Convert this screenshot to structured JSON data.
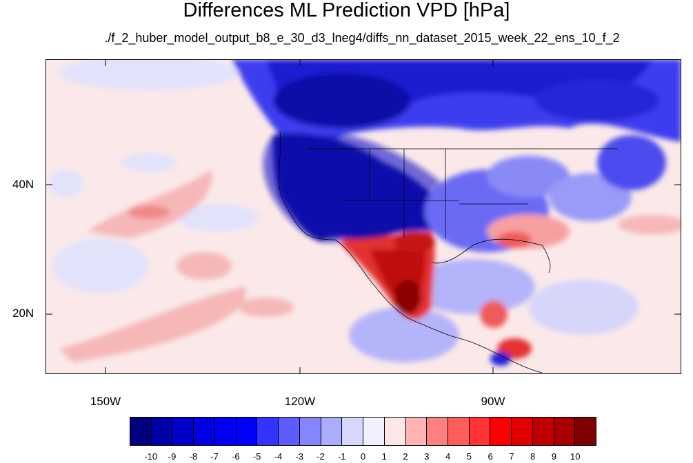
{
  "title": "Differences ML Prediction VPD [hPa]",
  "subtitle": "./f_2_huber_model_output_b8_e_30_d3_lneg4/diffs_nn_dataset_2015_week_22_ens_10_f_2",
  "lat_labels": [
    "40N",
    "20N"
  ],
  "lon_labels": [
    "150W",
    "120W",
    "90W"
  ],
  "colorbar": {
    "colors": [
      "#000080",
      "#0000a8",
      "#0000c8",
      "#0000e0",
      "#0000f4",
      "#0000ff",
      "#3333ff",
      "#5c5cff",
      "#8585ff",
      "#adadff",
      "#d6d6ff",
      "#f0f0ff",
      "#ffe6e6",
      "#ffb3b3",
      "#ff8080",
      "#ff5c5c",
      "#ff3333",
      "#ff0000",
      "#e00000",
      "#c00000",
      "#a80000",
      "#800000"
    ],
    "labels": [
      "-10",
      "-9",
      "-8",
      "-7",
      "-6",
      "-5",
      "-4",
      "-3",
      "-2",
      "-1",
      "0",
      "1",
      "2",
      "3",
      "4",
      "5",
      "6",
      "7",
      "8",
      "9",
      "10"
    ]
  }
}
